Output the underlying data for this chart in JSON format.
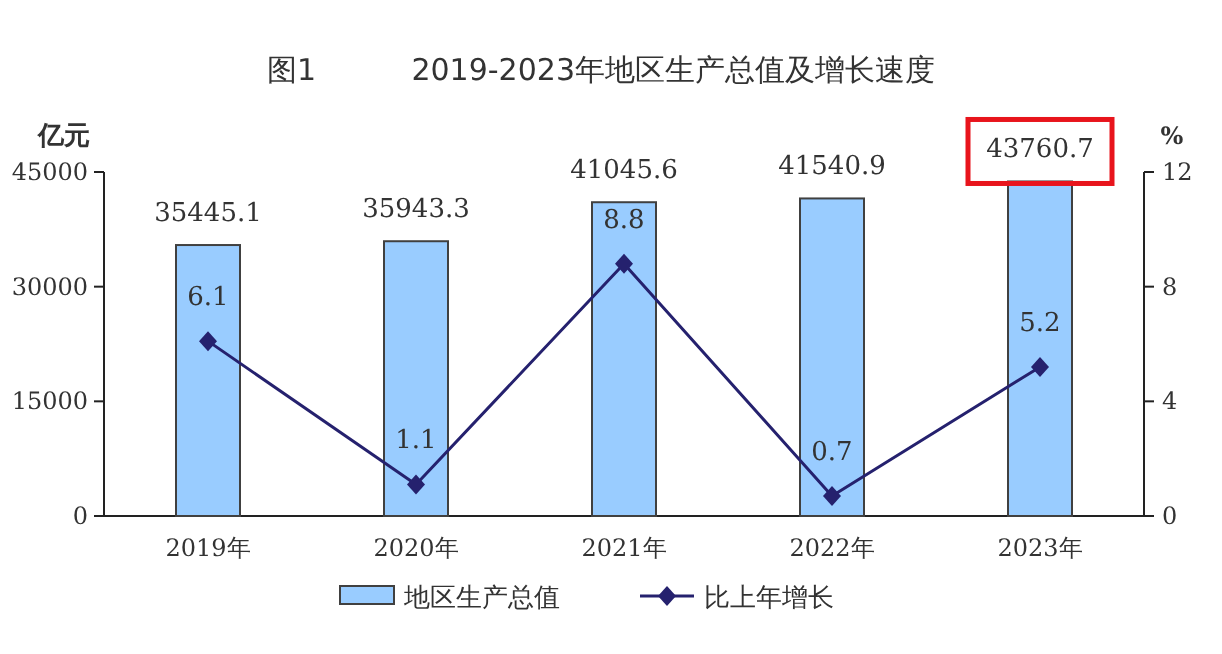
{
  "chart_data": {
    "type": "bar",
    "title": "图1          2019-2023年地区生产总值及增长速度",
    "categories": [
      "2019年",
      "2020年",
      "2021年",
      "2022年",
      "2023年"
    ],
    "series": [
      {
        "name": "地区生产总值",
        "color": "#99ccff",
        "values": [
          35445.1,
          35943.3,
          41045.6,
          41540.9,
          43760.7
        ]
      },
      {
        "name": "比上年增长",
        "type": "line",
        "axis": "y2",
        "color": "#25216e",
        "values": [
          6.1,
          1.1,
          8.8,
          0.7,
          5.2
        ]
      }
    ],
    "ylabel": "亿元",
    "y2label": "%",
    "ylim": [
      0,
      45000
    ],
    "yticks": [
      0,
      15000,
      30000,
      45000
    ],
    "y2lim": [
      0,
      12
    ],
    "y2ticks": [
      0,
      4,
      8,
      12
    ],
    "data_labels": true,
    "legend": "bottom",
    "marker": "diamond",
    "line_style": "solid"
  }
}
